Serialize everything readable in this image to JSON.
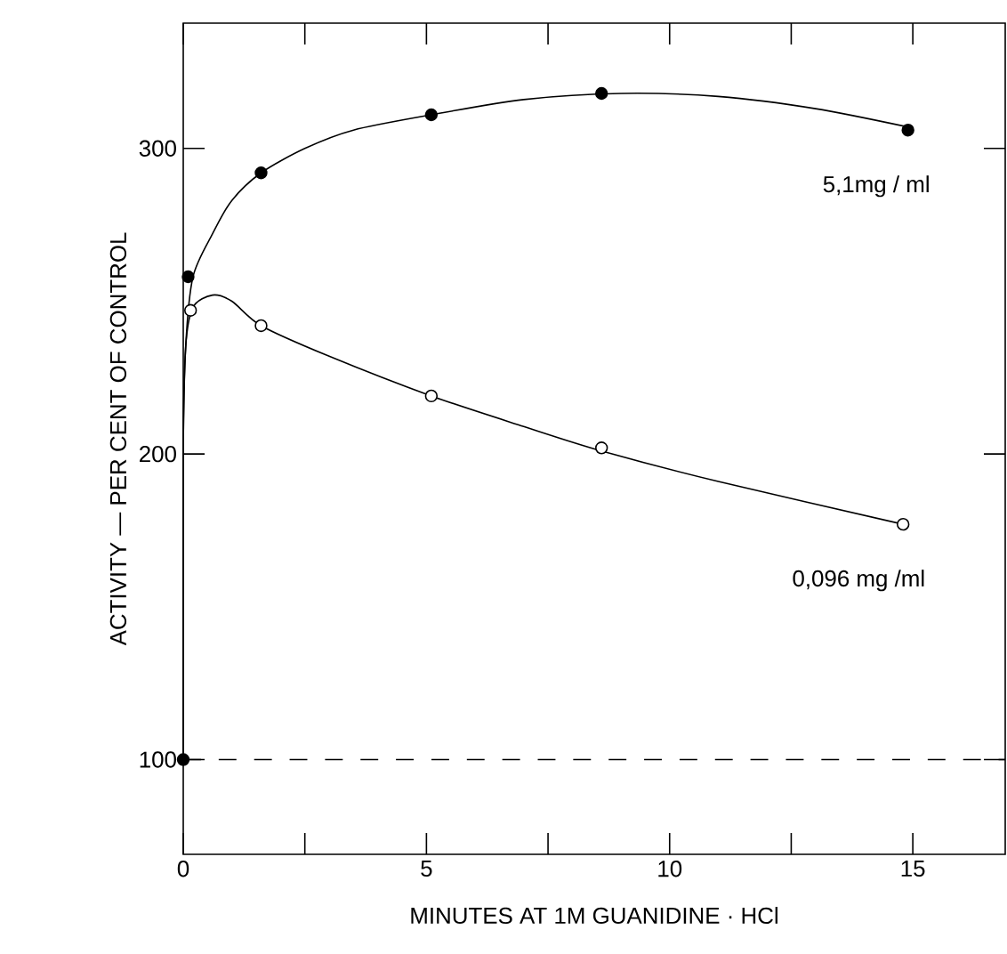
{
  "chart_data": {
    "type": "scatter",
    "xlabel": "MINUTES AT 1M GUANIDINE · HCl",
    "ylabel": "ACTIVITY — PER CENT OF CONTROL",
    "xlim": [
      0,
      16.9
    ],
    "ylim": [
      69,
      341
    ],
    "xticks": [
      0,
      {
        "value": 2.5,
        "label": null
      },
      5,
      {
        "value": 7.5,
        "label": null
      },
      10,
      {
        "value": 12.5,
        "label": null
      },
      15
    ],
    "yticks": [
      100,
      200,
      300
    ],
    "series": [
      {
        "type": "line",
        "color": "#000000",
        "marker": "none",
        "x": [
          0,
          0,
          0.05,
          0.2,
          0.6,
          1.0,
          1.6,
          2.5,
          3.5,
          5.1,
          7,
          9,
          11,
          13,
          14.9
        ],
        "values": [
          100,
          200,
          235,
          258,
          272,
          283,
          292,
          300,
          306,
          311,
          316,
          318,
          317,
          313,
          307
        ]
      },
      {
        "type": "line",
        "color": "#000000",
        "marker": "none",
        "x": [
          0,
          0,
          0.05,
          0.2,
          0.6,
          1.0,
          1.6,
          3,
          5.1,
          7,
          8.6,
          11,
          14.8
        ],
        "values": [
          100,
          200,
          235,
          248,
          252,
          250,
          242,
          232,
          219,
          209,
          201,
          191,
          177
        ]
      },
      {
        "name": "5,1mg / ml",
        "color": "#000000",
        "marker": "circle",
        "x": [
          0,
          0.1,
          1.6,
          5.1,
          8.6,
          14.9
        ],
        "values": [
          100,
          258,
          292,
          311,
          318,
          306
        ]
      },
      {
        "name": "0,096 mg /ml",
        "color": "#ffffff",
        "marker": "circle",
        "x": [
          0.15,
          1.6,
          5.1,
          8.6,
          14.8
        ],
        "values": [
          247,
          242,
          219,
          202,
          177
        ]
      }
    ],
    "ref_lines": [
      {
        "axis": "y",
        "value": 100,
        "line_style": "dashed"
      }
    ]
  }
}
